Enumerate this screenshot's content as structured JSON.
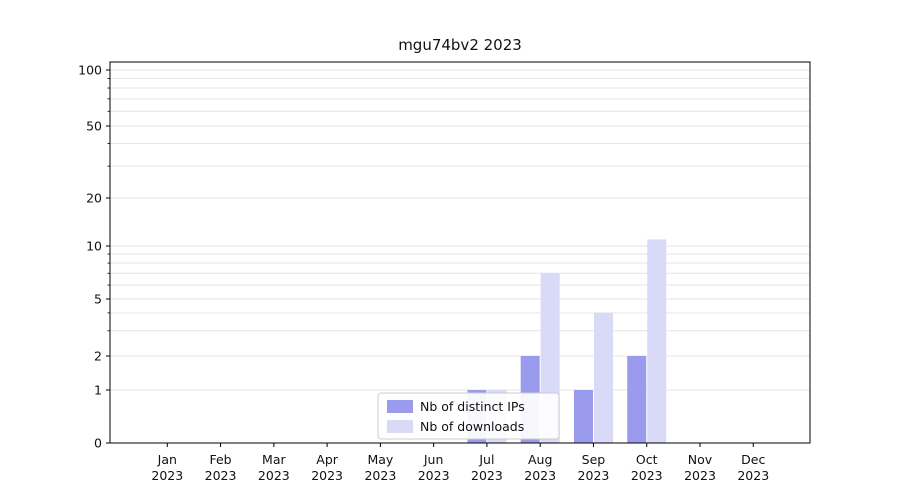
{
  "chart_data": {
    "type": "bar",
    "title": "mgu74bv2 2023",
    "categories": [
      "Jan 2023",
      "Feb 2023",
      "Mar 2023",
      "Apr 2023",
      "May 2023",
      "Jun 2023",
      "Jul 2023",
      "Aug 2023",
      "Sep 2023",
      "Oct 2023",
      "Nov 2023",
      "Dec 2023"
    ],
    "series": [
      {
        "name": "Nb of distinct IPs",
        "color": "#9b9bee",
        "values": [
          0,
          0,
          0,
          0,
          0,
          0,
          1,
          2,
          1,
          2,
          0,
          0
        ]
      },
      {
        "name": "Nb of downloads",
        "color": "#d9d9f8",
        "values": [
          0,
          0,
          0,
          0,
          0,
          0,
          1,
          7,
          4,
          11,
          0,
          0
        ]
      }
    ],
    "yticks": [
      0,
      1,
      2,
      5,
      10,
      20,
      50,
      100
    ],
    "xlabel": "",
    "ylabel": "",
    "scale": "symlog",
    "ylim": [
      0,
      110
    ],
    "grid": true,
    "gridline_color": "#e6e6e6",
    "legend_position": "lower center",
    "legend_border_color": "#cccccc",
    "text_color": "#111111"
  }
}
